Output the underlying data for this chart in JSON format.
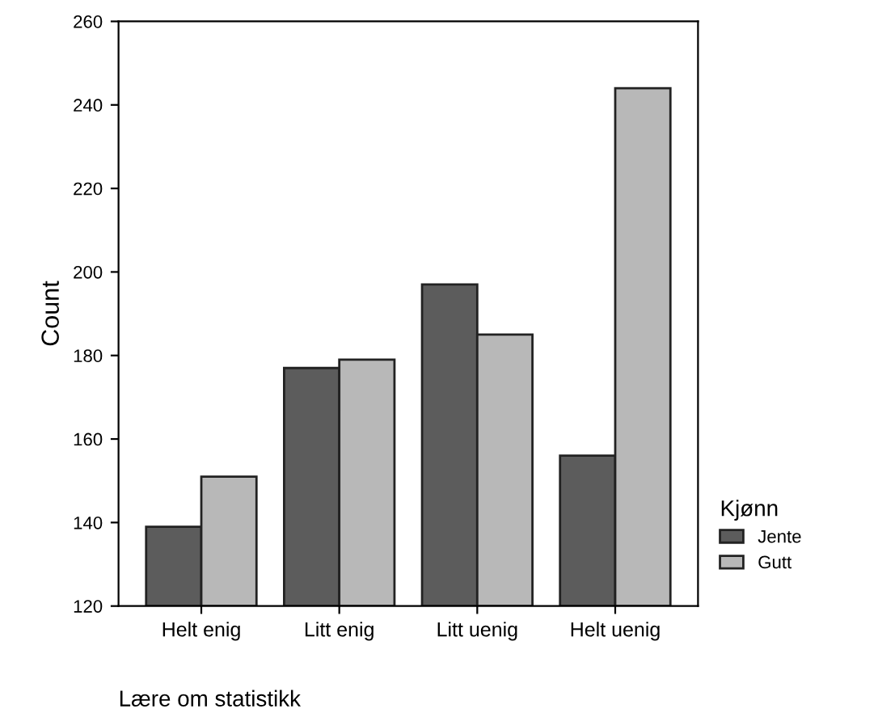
{
  "chart_data": {
    "type": "bar",
    "xlabel": "Lære om statistikk",
    "ylabel": "Count",
    "legend_title": "Kjønn",
    "categories": [
      "Helt enig",
      "Litt enig",
      "Litt uenig",
      "Helt uenig"
    ],
    "series": [
      {
        "name": "Jente",
        "color": "#5c5c5c",
        "values": [
          139,
          177,
          197,
          156
        ]
      },
      {
        "name": "Gutt",
        "color": "#b8b8b8",
        "values": [
          151,
          179,
          185,
          244
        ]
      }
    ],
    "ylim": [
      120,
      260
    ],
    "yticks": [
      120,
      140,
      160,
      180,
      200,
      220,
      240,
      260
    ],
    "grid": false,
    "legend": "right"
  }
}
